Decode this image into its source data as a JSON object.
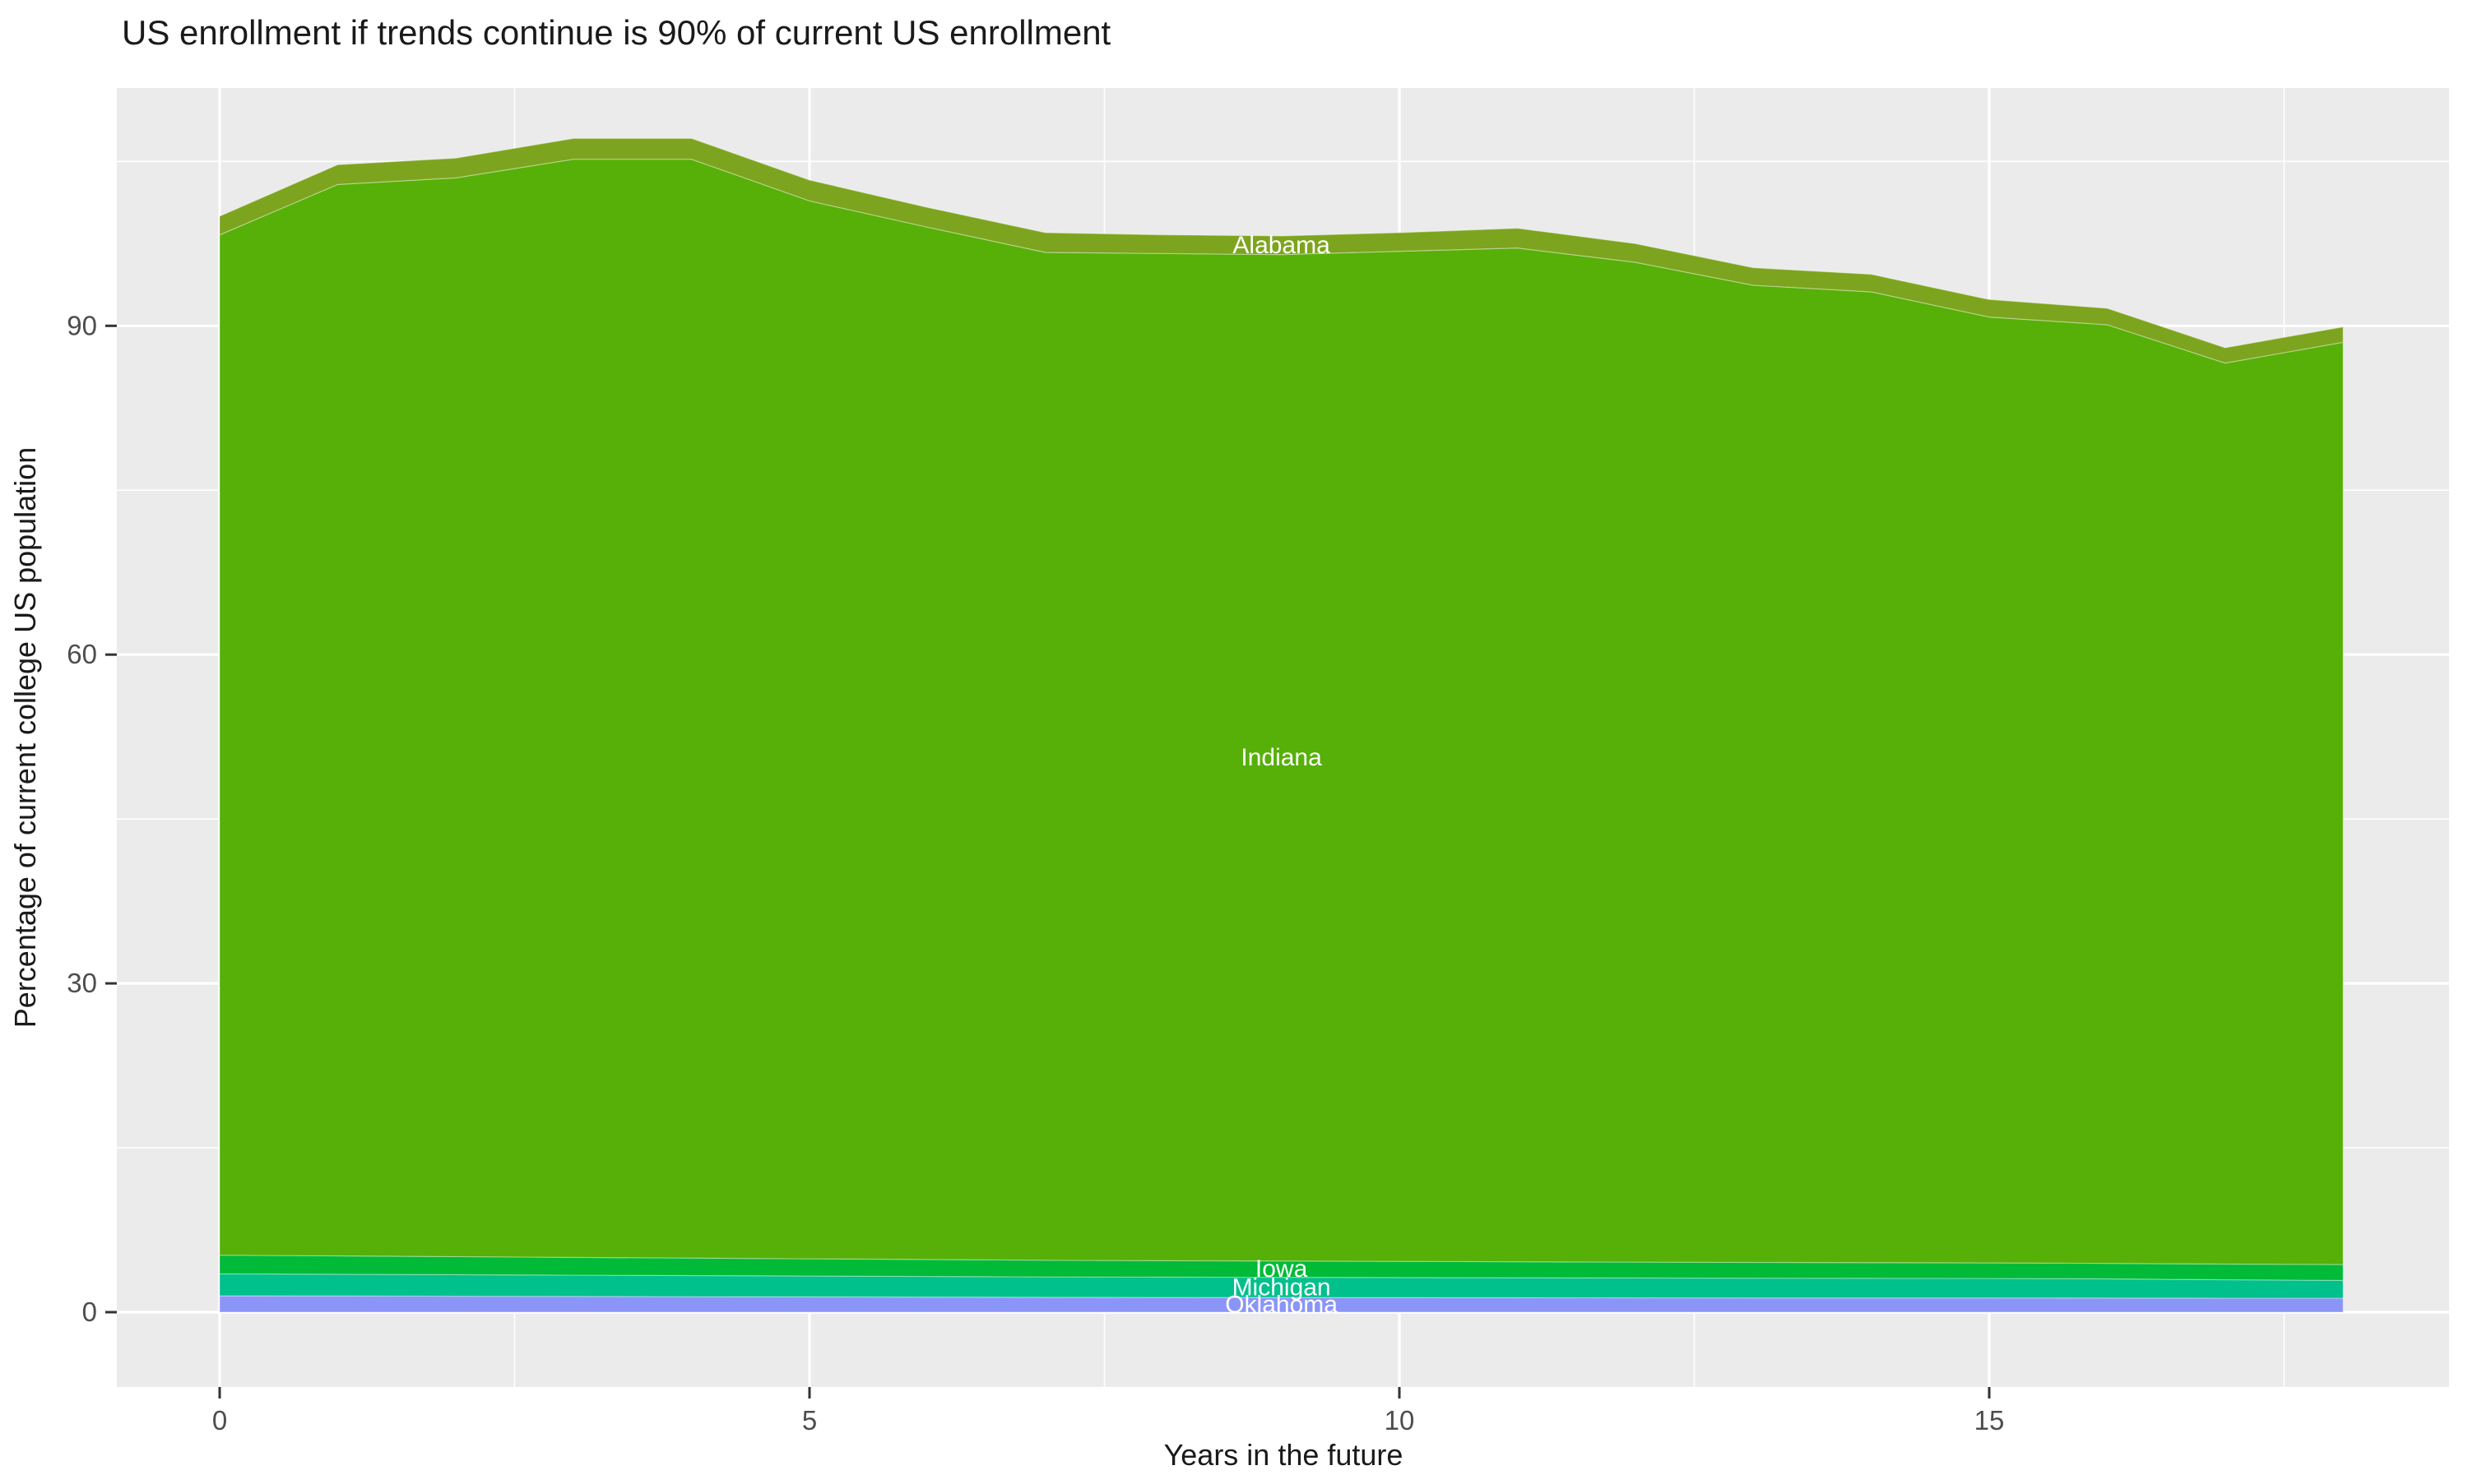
{
  "title": "US enrollment if trends continue is 90% of current US enrollment",
  "x_axis": {
    "label": "Years in the future",
    "ticks": [
      0,
      5,
      10,
      15
    ],
    "minor_ticks": [
      2.5,
      7.5,
      12.5,
      17.5
    ],
    "range": [
      -0.87,
      18.9
    ]
  },
  "y_axis": {
    "label": "Percentage of current college US population",
    "ticks": [
      0,
      30,
      60,
      90
    ],
    "minor_ticks": [
      15,
      45,
      75,
      105
    ],
    "range": [
      -6.8,
      111.8
    ]
  },
  "colors": {
    "panel_background": "#EBEBEB",
    "gridline": "#FFFFFF",
    "tick_mark": "#333333",
    "tick_label": "#4D4D4D",
    "title_text": "#1A1A1A",
    "area_label_text": "#FFFFFF"
  },
  "chart_data": {
    "type": "area",
    "stacked": true,
    "title": "US enrollment if trends continue is 90% of current US enrollment",
    "xlabel": "Years in the future",
    "ylabel": "Percentage of current college US population",
    "x": [
      0,
      1,
      2,
      3,
      4,
      5,
      6,
      7,
      8,
      9,
      10,
      11,
      12,
      13,
      14,
      15,
      16,
      17,
      18
    ],
    "series": [
      {
        "name": "Oklahoma",
        "color": "#8B95F8",
        "values": [
          1.5,
          1.48,
          1.46,
          1.44,
          1.42,
          1.4,
          1.38,
          1.36,
          1.35,
          1.34,
          1.33,
          1.32,
          1.31,
          1.3,
          1.3,
          1.3,
          1.29,
          1.28,
          1.28
        ]
      },
      {
        "name": "Michigan",
        "color": "#00C08B",
        "values": [
          2.0,
          1.98,
          1.96,
          1.94,
          1.92,
          1.9,
          1.88,
          1.86,
          1.85,
          1.84,
          1.83,
          1.82,
          1.81,
          1.8,
          1.79,
          1.78,
          1.75,
          1.68,
          1.62
        ]
      },
      {
        "name": "Iowa",
        "color": "#00BA38",
        "values": [
          1.7,
          1.68,
          1.65,
          1.62,
          1.6,
          1.57,
          1.55,
          1.52,
          1.5,
          1.49,
          1.48,
          1.46,
          1.45,
          1.44,
          1.43,
          1.42,
          1.41,
          1.43,
          1.45
        ]
      },
      {
        "name": "Indiana",
        "color": "#56B008",
        "values": [
          93.1,
          97.76,
          98.43,
          100.2,
          100.26,
          96.53,
          94.19,
          91.96,
          91.9,
          91.83,
          92.16,
          92.5,
          91.23,
          89.16,
          88.58,
          86.3,
          85.65,
          82.21,
          84.15
        ]
      },
      {
        "name": "Alabama",
        "color": "#7DA41E",
        "values": [
          1.7,
          1.8,
          1.8,
          1.9,
          1.9,
          1.9,
          1.8,
          1.8,
          1.7,
          1.7,
          1.7,
          1.8,
          1.7,
          1.6,
          1.6,
          1.6,
          1.5,
          1.4,
          1.4
        ]
      }
    ],
    "stack_totals": [
      100.0,
      104.7,
      105.3,
      107.1,
      107.1,
      103.3,
      100.8,
      98.5,
      98.3,
      98.2,
      98.5,
      98.9,
      97.5,
      95.3,
      94.7,
      92.4,
      91.6,
      88.0,
      89.9
    ],
    "series_label_x": 9,
    "grid": true,
    "legend_position": "none"
  }
}
